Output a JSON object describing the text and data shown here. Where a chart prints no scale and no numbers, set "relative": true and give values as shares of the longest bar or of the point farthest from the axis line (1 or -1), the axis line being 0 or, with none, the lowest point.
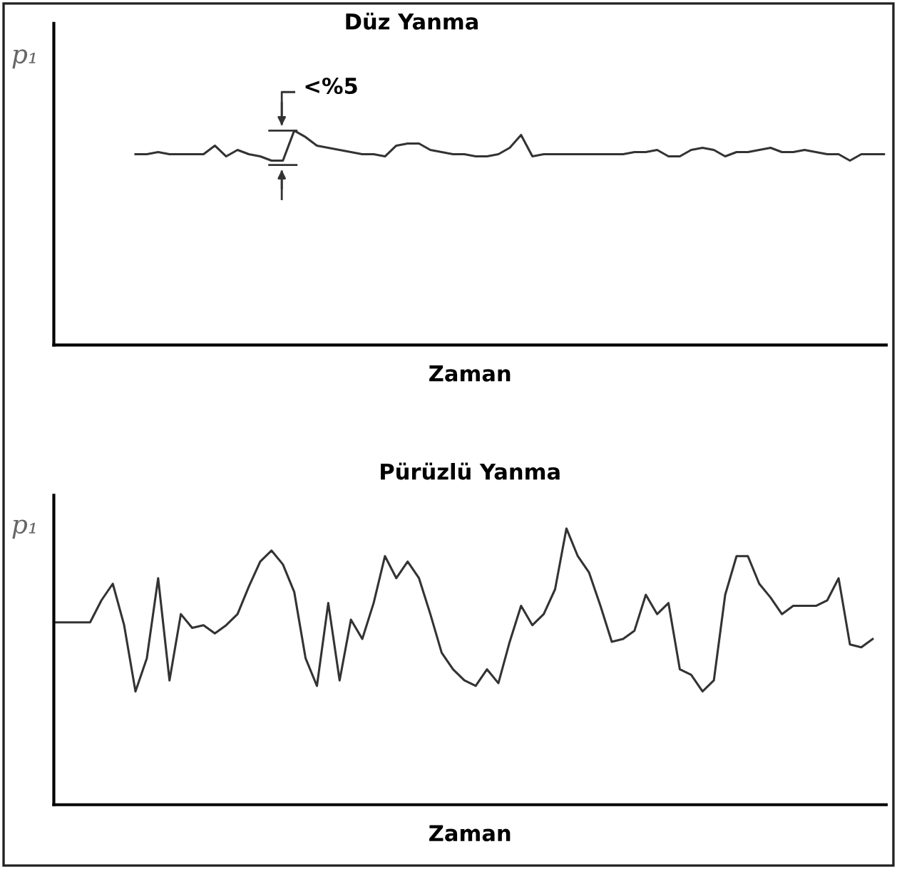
{
  "chart_data": [
    {
      "type": "line",
      "title": "Düz Yanma",
      "xlabel": "Zaman",
      "ylabel": "p₁",
      "relative": true,
      "tick_labels": false,
      "annotations": [
        "<%5"
      ],
      "categories": [
        null,
        null,
        null,
        null,
        null,
        null,
        null,
        null,
        null,
        null,
        null,
        null,
        null,
        null,
        null,
        null,
        null,
        null,
        null,
        null,
        null,
        null,
        null,
        null,
        null,
        null,
        null,
        null,
        null,
        null,
        null,
        null,
        null,
        null,
        null,
        null,
        null,
        null,
        null,
        null,
        null,
        null,
        null,
        null,
        null,
        null,
        null,
        null,
        null,
        null,
        null,
        null,
        null,
        null,
        null,
        null,
        null,
        null,
        null,
        null,
        null,
        null,
        null,
        null,
        null,
        null,
        null,
        null,
        null,
        null,
        null,
        null,
        null,
        null
      ],
      "series": [
        {
          "color": "#333333",
          "values": [
            null,
            null,
            null,
            null,
            null,
            null,
            null,
            0.89,
            0.89,
            0.9,
            0.89,
            0.89,
            0.89,
            0.89,
            0.93,
            0.88,
            0.91,
            0.89,
            0.88,
            0.86,
            0.86,
            1.0,
            0.97,
            0.93,
            0.92,
            0.91,
            0.9,
            0.89,
            0.89,
            0.88,
            0.93,
            0.94,
            0.94,
            0.91,
            0.9,
            0.89,
            0.89,
            0.88,
            0.88,
            0.89,
            0.92,
            0.98,
            0.88,
            0.89,
            0.89,
            0.89,
            0.89,
            0.89,
            0.89,
            0.89,
            0.89,
            0.9,
            0.9,
            0.91,
            0.88,
            0.88,
            0.91,
            0.92,
            0.91,
            0.88,
            0.9,
            0.9,
            0.91,
            0.92,
            0.9,
            0.9,
            0.91,
            0.9,
            0.89,
            0.89,
            0.86,
            0.89,
            0.89,
            0.89
          ]
        }
      ]
    },
    {
      "type": "line",
      "title": "Pürüzlü Yanma",
      "xlabel": "Zaman",
      "ylabel": "p₁",
      "relative": true,
      "tick_labels": false,
      "categories": [
        null,
        null,
        null,
        null,
        null,
        null,
        null,
        null,
        null,
        null,
        null,
        null,
        null,
        null,
        null,
        null,
        null,
        null,
        null,
        null,
        null,
        null,
        null,
        null,
        null,
        null,
        null,
        null,
        null,
        null,
        null,
        null,
        null,
        null,
        null,
        null,
        null,
        null,
        null,
        null,
        null,
        null,
        null,
        null,
        null,
        null,
        null,
        null,
        null,
        null,
        null,
        null,
        null,
        null,
        null,
        null,
        null,
        null,
        null,
        null,
        null,
        null,
        null,
        null,
        null,
        null,
        null,
        null,
        null,
        null,
        null,
        null,
        null,
        null
      ],
      "series": [
        {
          "color": "#333333",
          "values": [
            0.66,
            0.66,
            0.66,
            0.66,
            0.74,
            0.8,
            0.65,
            0.41,
            0.53,
            0.82,
            0.45,
            0.69,
            0.64,
            0.65,
            0.62,
            0.65,
            0.69,
            0.79,
            0.88,
            0.92,
            0.87,
            0.77,
            0.53,
            0.43,
            0.73,
            0.45,
            0.67,
            0.6,
            0.73,
            0.9,
            0.82,
            0.88,
            0.82,
            0.69,
            0.55,
            0.49,
            0.45,
            0.43,
            0.49,
            0.44,
            0.59,
            0.72,
            0.65,
            0.69,
            0.78,
            1.0,
            0.9,
            0.84,
            0.72,
            0.59,
            0.6,
            0.63,
            0.76,
            0.69,
            0.73,
            0.49,
            0.47,
            0.41,
            0.45,
            0.76,
            0.9,
            0.9,
            0.8,
            0.75,
            0.69,
            0.72,
            0.72,
            0.72,
            0.74,
            0.82,
            0.58,
            0.57,
            0.6,
            null
          ]
        }
      ]
    }
  ]
}
